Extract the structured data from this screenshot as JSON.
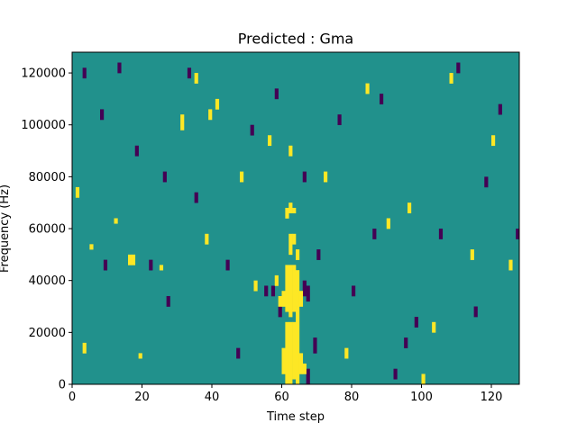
{
  "chart_data": {
    "type": "heatmap",
    "title": "Predicted : Gma",
    "xlabel": "Time step",
    "ylabel": "Frequency (Hz)",
    "xlim": [
      0,
      128
    ],
    "ylim": [
      0,
      128000
    ],
    "xticks": [
      0,
      20,
      40,
      60,
      80,
      100,
      120
    ],
    "xtick_labels": [
      "0",
      "20",
      "40",
      "60",
      "80",
      "100",
      "120"
    ],
    "yticks": [
      0,
      20000,
      40000,
      60000,
      80000,
      100000,
      120000
    ],
    "ytick_labels": [
      "0",
      "20000",
      "40000",
      "60000",
      "80000",
      "100000",
      "120000"
    ],
    "colormap": "viridis",
    "background_value": 0,
    "colors": {
      "low": "#440154",
      "mid": "#21918c",
      "high": "#fde725"
    },
    "cells_high": [
      [
        61,
        0,
        1,
        24
      ],
      [
        62,
        0,
        1,
        24
      ],
      [
        63,
        2,
        1,
        22
      ],
      [
        64,
        0,
        1,
        30
      ],
      [
        60,
        4,
        1,
        10
      ],
      [
        65,
        4,
        1,
        8
      ],
      [
        66,
        4,
        1,
        4
      ],
      [
        61,
        28,
        1,
        18
      ],
      [
        62,
        26,
        1,
        20
      ],
      [
        63,
        28,
        1,
        18
      ],
      [
        64,
        30,
        1,
        14
      ],
      [
        60,
        30,
        1,
        6
      ],
      [
        65,
        30,
        1,
        6
      ],
      [
        59,
        30,
        1,
        4
      ],
      [
        62,
        50,
        1,
        8
      ],
      [
        63,
        54,
        1,
        4
      ],
      [
        61,
        64,
        1,
        4
      ],
      [
        62,
        66,
        1,
        4
      ],
      [
        63,
        66,
        1,
        2
      ],
      [
        64,
        48,
        1,
        4
      ],
      [
        16,
        46,
        1,
        4
      ],
      [
        17,
        46,
        1,
        4
      ],
      [
        1,
        72,
        1,
        4
      ],
      [
        3,
        12,
        1,
        4
      ],
      [
        5,
        52,
        1,
        2
      ],
      [
        12,
        62,
        1,
        2
      ],
      [
        19,
        10,
        1,
        2
      ],
      [
        25,
        44,
        1,
        2
      ],
      [
        31,
        98,
        1,
        6
      ],
      [
        35,
        116,
        1,
        4
      ],
      [
        38,
        54,
        1,
        4
      ],
      [
        39,
        102,
        1,
        4
      ],
      [
        41,
        106,
        1,
        4
      ],
      [
        48,
        78,
        1,
        4
      ],
      [
        52,
        36,
        1,
        4
      ],
      [
        56,
        92,
        1,
        4
      ],
      [
        58,
        38,
        1,
        4
      ],
      [
        62,
        88,
        1,
        4
      ],
      [
        72,
        78,
        1,
        4
      ],
      [
        78,
        10,
        1,
        4
      ],
      [
        84,
        112,
        1,
        4
      ],
      [
        90,
        60,
        1,
        4
      ],
      [
        96,
        66,
        1,
        4
      ],
      [
        100,
        0,
        1,
        4
      ],
      [
        103,
        20,
        1,
        4
      ],
      [
        108,
        116,
        1,
        4
      ],
      [
        114,
        48,
        1,
        4
      ],
      [
        120,
        92,
        1,
        4
      ],
      [
        125,
        44,
        1,
        4
      ]
    ],
    "cells_low": [
      [
        63,
        28,
        1,
        6
      ],
      [
        66,
        34,
        1,
        6
      ],
      [
        67,
        32,
        1,
        6
      ],
      [
        67,
        0,
        1,
        6
      ],
      [
        69,
        12,
        1,
        6
      ],
      [
        57,
        34,
        1,
        4
      ],
      [
        59,
        26,
        1,
        4
      ],
      [
        3,
        118,
        1,
        4
      ],
      [
        9,
        44,
        1,
        4
      ],
      [
        13,
        120,
        1,
        4
      ],
      [
        22,
        44,
        1,
        4
      ],
      [
        26,
        78,
        1,
        4
      ],
      [
        27,
        30,
        1,
        4
      ],
      [
        33,
        118,
        1,
        4
      ],
      [
        35,
        70,
        1,
        4
      ],
      [
        44,
        44,
        1,
        4
      ],
      [
        47,
        10,
        1,
        4
      ],
      [
        51,
        96,
        1,
        4
      ],
      [
        55,
        34,
        1,
        4
      ],
      [
        58,
        110,
        1,
        4
      ],
      [
        66,
        78,
        1,
        4
      ],
      [
        70,
        48,
        1,
        4
      ],
      [
        76,
        100,
        1,
        4
      ],
      [
        80,
        34,
        1,
        4
      ],
      [
        86,
        56,
        1,
        4
      ],
      [
        88,
        108,
        1,
        4
      ],
      [
        92,
        2,
        1,
        4
      ],
      [
        95,
        14,
        1,
        4
      ],
      [
        98,
        22,
        1,
        4
      ],
      [
        105,
        56,
        1,
        4
      ],
      [
        110,
        120,
        1,
        4
      ],
      [
        115,
        26,
        1,
        4
      ],
      [
        118,
        76,
        1,
        4
      ],
      [
        122,
        104,
        1,
        4
      ],
      [
        127,
        56,
        1,
        4
      ],
      [
        8,
        102,
        1,
        4
      ],
      [
        18,
        88,
        1,
        4
      ]
    ]
  }
}
